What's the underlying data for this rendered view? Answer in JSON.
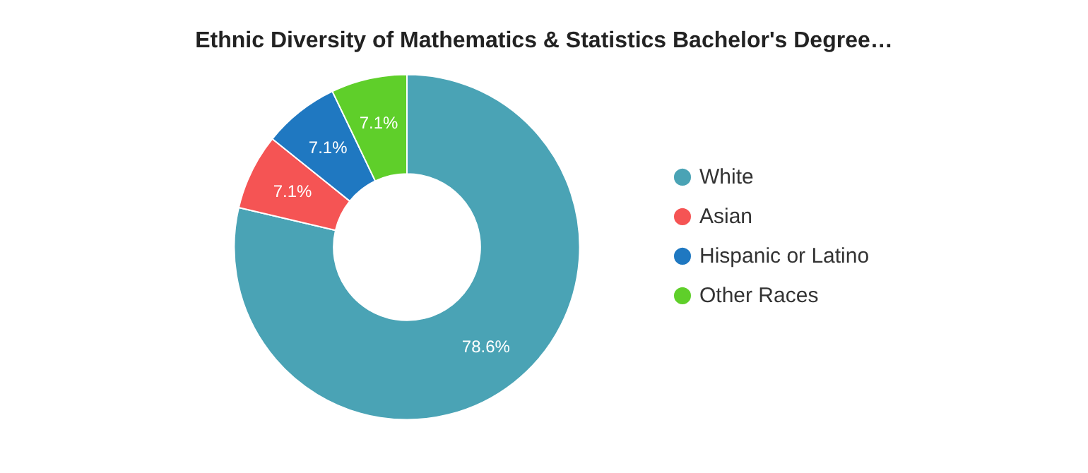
{
  "chart_data": {
    "type": "donut",
    "title": "Ethnic Diversity of Mathematics & Statistics Bachelor's Degree…",
    "categories": [
      "White",
      "Asian",
      "Hispanic or Latino",
      "Other Races"
    ],
    "values": [
      78.6,
      7.1,
      7.1,
      7.1
    ],
    "value_labels": [
      "78.6%",
      "7.1%",
      "7.1%",
      "7.1%"
    ],
    "colors": [
      "#4aa3b5",
      "#f55454",
      "#1f78c1",
      "#5fcf2a"
    ],
    "legend": "right"
  }
}
